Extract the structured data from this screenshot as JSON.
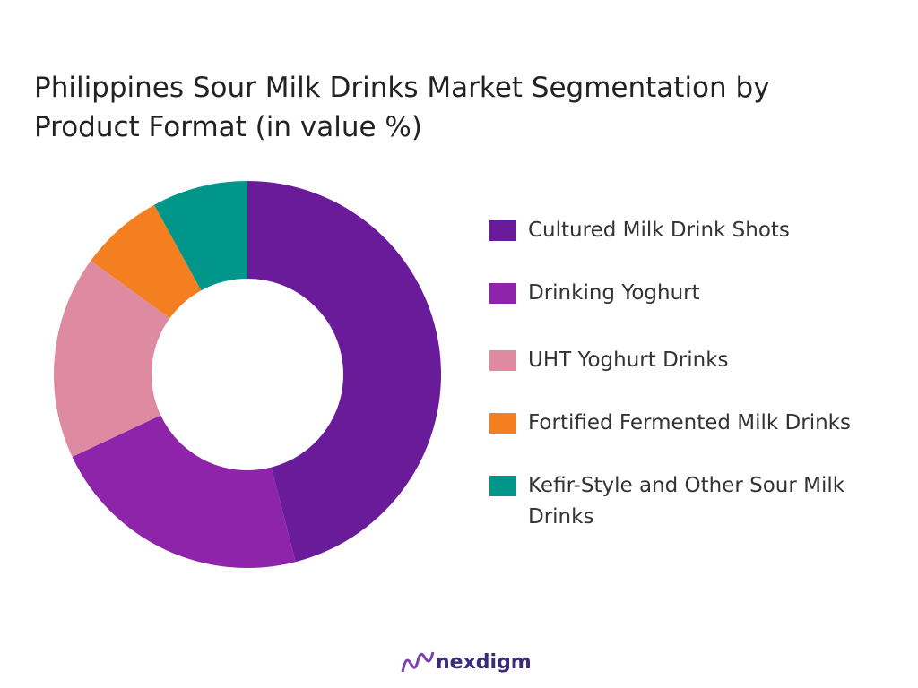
{
  "chart_data": {
    "type": "donut",
    "title": "Philippines Sour Milk Drinks Market Segmentation by Product Format (in value %)",
    "categories": [
      "Cultured Milk Drink Shots",
      "Drinking Yoghurt",
      "UHT Yoghurt Drinks",
      "Fortified Fermented Milk Drinks",
      "Kefir-Style and Other Sour Milk Drinks"
    ],
    "values": [
      46,
      22,
      17,
      7,
      8
    ],
    "colors": [
      "#6a1b9a",
      "#8e24aa",
      "#de8aa0",
      "#f47f20",
      "#00968a"
    ]
  },
  "brand": "nexdigm"
}
